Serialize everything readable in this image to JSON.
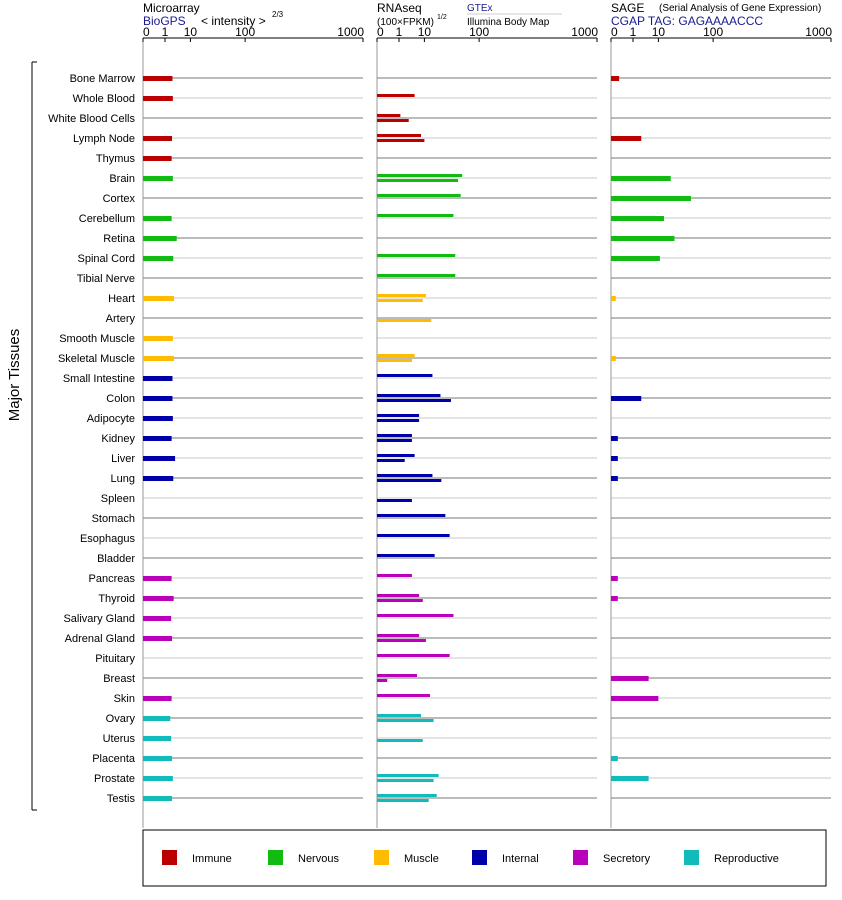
{
  "chart_data": {
    "type": "bar",
    "ylabel": "Major Tissues",
    "tick_labels": [
      "0",
      "1",
      "10",
      "100",
      "1000"
    ],
    "tick_values": [
      0,
      1,
      10,
      100,
      1000
    ],
    "xlim": [
      0,
      1000
    ],
    "scale": "power",
    "categories": [
      "Bone Marrow",
      "Whole Blood",
      "White Blood Cells",
      "Lymph Node",
      "Thymus",
      "Brain",
      "Cortex",
      "Cerebellum",
      "Retina",
      "Spinal Cord",
      "Tibial Nerve",
      "Heart",
      "Artery",
      "Smooth Muscle",
      "Skeletal Muscle",
      "Small Intestine",
      "Colon",
      "Adipocyte",
      "Kidney",
      "Liver",
      "Lung",
      "Spleen",
      "Stomach",
      "Esophagus",
      "Bladder",
      "Pancreas",
      "Thyroid",
      "Salivary Gland",
      "Adrenal Gland",
      "Pituitary",
      "Breast",
      "Skin",
      "Ovary",
      "Uterus",
      "Placenta",
      "Prostate",
      "Testis"
    ],
    "groups": [
      "Immune",
      "Immune",
      "Immune",
      "Immune",
      "Immune",
      "Nervous",
      "Nervous",
      "Nervous",
      "Nervous",
      "Nervous",
      "Nervous",
      "Muscle",
      "Muscle",
      "Muscle",
      "Muscle",
      "Internal",
      "Internal",
      "Internal",
      "Internal",
      "Internal",
      "Internal",
      "Internal",
      "Internal",
      "Internal",
      "Internal",
      "Secretory",
      "Secretory",
      "Secretory",
      "Secretory",
      "Secretory",
      "Secretory",
      "Secretory",
      "Reproductive",
      "Reproductive",
      "Reproductive",
      "Reproductive",
      "Reproductive"
    ],
    "legend": [
      {
        "name": "Immune",
        "color": "#bb0000"
      },
      {
        "name": "Nervous",
        "color": "#11bb11"
      },
      {
        "name": "Muscle",
        "color": "#ffbb00"
      },
      {
        "name": "Internal",
        "color": "#0000aa"
      },
      {
        "name": "Secretory",
        "color": "#bb00bb"
      },
      {
        "name": "Reproductive",
        "color": "#11bbbb"
      }
    ],
    "legend_position": "bottom",
    "grid": true,
    "panels": [
      {
        "id": "microarray",
        "title": "Microarray",
        "subtitle": "BioGPS",
        "unit": "< intensity >",
        "unit_exp": "2/3",
        "series": [
          {
            "values": [
              2.4,
              2.5,
              null,
              2.3,
              2.2,
              2.5,
              null,
              2.2,
              3.6,
              2.6,
              null,
              2.8,
              null,
              2.5,
              2.8,
              2.4,
              2.4,
              2.5,
              2.2,
              3.1,
              2.6,
              null,
              null,
              null,
              null,
              2.2,
              2.7,
              2.1,
              2.3,
              null,
              null,
              2.2,
              1.9,
              2.1,
              2.3,
              2.5,
              2.3
            ]
          }
        ]
      },
      {
        "id": "rnaseq",
        "title": "RNAseq",
        "unit": "(100×FPKM)",
        "unit_exp": "1/2",
        "source_top": "GTEx",
        "source_bottom": "Illumina Body Map",
        "series": [
          {
            "name": "GTEx",
            "values": [
              null,
              5,
              1.2,
              8,
              null,
              58,
              55,
              42,
              null,
              45,
              45,
              11,
              null,
              null,
              5,
              16,
              24,
              7,
              4,
              5,
              16,
              null,
              30,
              36,
              18,
              4,
              7,
              42,
              7,
              36,
              6,
              14,
              8,
              null,
              null,
              22,
              20
            ]
          },
          {
            "name": "Illumina Body Map",
            "values": [
              null,
              null,
              3,
              10,
              null,
              50,
              null,
              null,
              null,
              null,
              null,
              9,
              15,
              null,
              4,
              null,
              38,
              7,
              4,
              2,
              25,
              4,
              null,
              null,
              null,
              null,
              9,
              null,
              11,
              null,
              0.1,
              null,
              17,
              9,
              null,
              17,
              13
            ]
          }
        ]
      },
      {
        "id": "sage",
        "title": "SAGE",
        "subtitle": "CGAP TAG: GAGAAAACCC",
        "note": "(Serial Analysis of Gene Expression)",
        "series": [
          {
            "values": [
              0.05,
              null,
              null,
              2.6,
              null,
              20,
              48,
              14,
              24,
              11,
              null,
              0.01,
              null,
              null,
              0.01,
              null,
              2.6,
              null,
              0.03,
              0.03,
              0.03,
              null,
              null,
              null,
              null,
              0.03,
              0.03,
              null,
              null,
              null,
              5,
              10,
              null,
              null,
              0.03,
              5,
              null
            ]
          }
        ]
      }
    ]
  }
}
